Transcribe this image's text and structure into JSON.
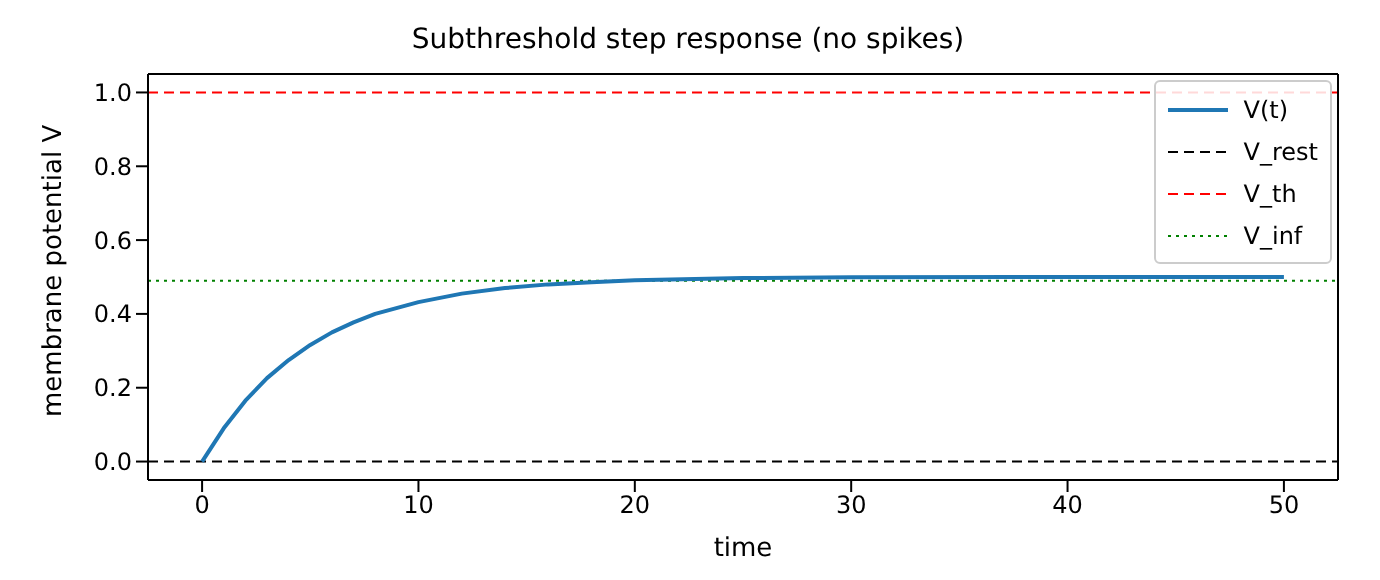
{
  "chart_data": {
    "type": "line",
    "title": "Subthreshold step response (no spikes)",
    "xlabel": "time",
    "ylabel": "membrane potential V",
    "x": [
      0,
      1,
      2,
      3,
      4,
      5,
      6,
      7,
      8,
      10,
      12,
      14,
      16,
      18,
      20,
      25,
      30,
      40,
      50
    ],
    "series": [
      {
        "name": "V(t)",
        "color": "#1f77b4",
        "values": [
          0,
          0.09,
          0.165,
          0.226,
          0.275,
          0.316,
          0.35,
          0.377,
          0.4,
          0.432,
          0.455,
          0.47,
          0.48,
          0.486,
          0.491,
          0.497,
          0.499,
          0.5,
          0.5
        ]
      }
    ],
    "ref_lines": [
      {
        "axis": "y",
        "value": 0,
        "label": "V_rest",
        "color": "#000000",
        "line_style": "dashed"
      },
      {
        "axis": "y",
        "value": 1,
        "label": "V_th",
        "color": "#ff0000",
        "line_style": "dashed"
      },
      {
        "axis": "y",
        "value": 0.49,
        "label": "V_inf",
        "color": "#008000",
        "line_style": "dotted"
      }
    ],
    "xlim": [
      -2.5,
      52.5
    ],
    "xticks": [
      0,
      10,
      20,
      30,
      40,
      50
    ],
    "ylim": [
      -0.05,
      1.05
    ],
    "yticks": [
      {
        "value": 0,
        "label": "0.0"
      },
      {
        "value": 0.2,
        "label": "0.2"
      },
      {
        "value": 0.4,
        "label": "0.4"
      },
      {
        "value": 0.6,
        "label": "0.6"
      },
      {
        "value": 0.8,
        "label": "0.8"
      },
      {
        "value": 1,
        "label": "1.0"
      }
    ],
    "legend": "top right",
    "grid": false,
    "marker": "none",
    "line_style": "solid"
  }
}
